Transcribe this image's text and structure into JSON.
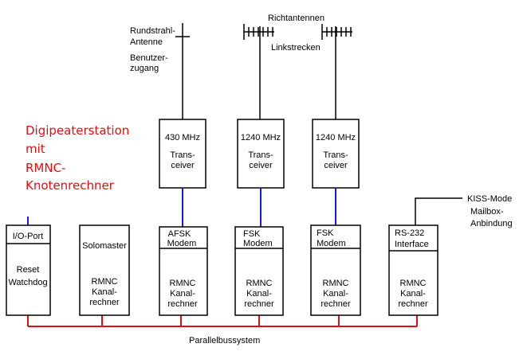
{
  "title": [
    "Digipeaterstation",
    "mit",
    "RMNC-",
    "Knotenrechner"
  ],
  "antenna_labels": {
    "rundstrahl": [
      "Rundstrahl-",
      "Antenne"
    ],
    "benutzer": [
      "Benutzer-",
      "zugang"
    ],
    "richt": "Richtantennen",
    "link": "Linkstrecken"
  },
  "transceivers": [
    {
      "freq": "430 MHz",
      "l1": "Trans-",
      "l2": "ceiver"
    },
    {
      "freq": "1240 MHz",
      "l1": "Trans-",
      "l2": "ceiver"
    },
    {
      "freq": "1240 MHz",
      "l1": "Trans-",
      "l2": "ceiver"
    }
  ],
  "cards": [
    {
      "head": [
        "I/O-Port"
      ],
      "body": [
        "Reset",
        "Watchdog"
      ]
    },
    {
      "head": [
        "Solomaster"
      ],
      "body": [
        "RMNC",
        "Kanal-",
        "rechner"
      ]
    },
    {
      "head": [
        "AFSK",
        "Modem"
      ],
      "body": [
        "RMNC",
        "Kanal-",
        "rechner"
      ]
    },
    {
      "head": [
        "FSK",
        "Modem"
      ],
      "body": [
        "RMNC",
        "Kanal-",
        "rechner"
      ]
    },
    {
      "head": [
        "FSK",
        "Modem"
      ],
      "body": [
        "RMNC",
        "Kanal-",
        "rechner"
      ]
    },
    {
      "head": [
        "RS-232",
        "Interface"
      ],
      "body": [
        "RMNC",
        "Kanal-",
        "rechner"
      ]
    }
  ],
  "kiss": [
    "KISS-Mode",
    "Mailbox-",
    "Anbindung"
  ],
  "bus_label": "Parallelbussystem",
  "colors": {
    "bus": "#dd1111",
    "rf_link": "#1a1adc",
    "title": "#dd1111"
  }
}
